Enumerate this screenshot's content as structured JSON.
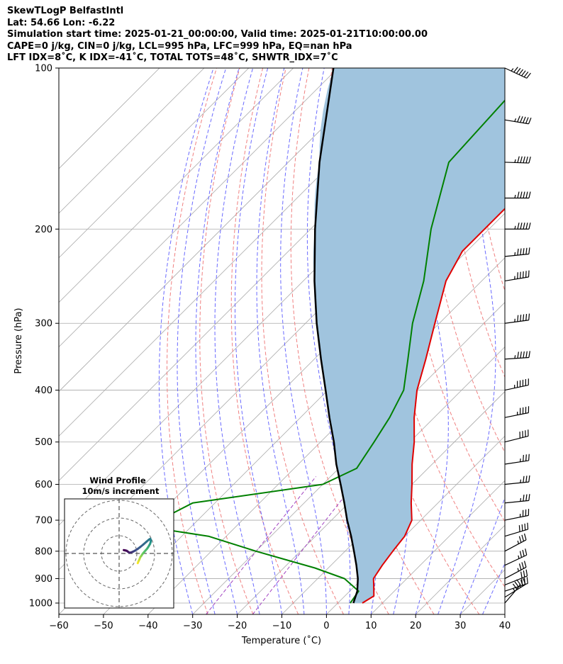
{
  "header": {
    "line1": "SkewTLogP BelfastIntl",
    "line2": "Lat: 54.66   Lon: -6.22",
    "line3": "Simulation start time: 2025-01-21_00:00:00, Valid time: 2025-01-21T10:00:00.00",
    "line4": "CAPE=0 j/kg, CIN=0 j/kg, LCL=995 hPa, LFC=999 hPa, EQ=nan hPa",
    "line5": "LFT IDX=8˚C, K IDX=-41˚C, TOTAL TOTS=48˚C, SHWTR_IDX=7˚C"
  },
  "chart_data": {
    "type": "line",
    "skew_t_log_p": true,
    "xlabel": "Temperature (˚C)",
    "ylabel": "Pressure (hPa)",
    "xlim": [
      -60,
      40
    ],
    "ylim": [
      1050,
      100
    ],
    "y_scale": "log",
    "grid": true,
    "x_ticks": [
      -60,
      -50,
      -40,
      -30,
      -20,
      -10,
      0,
      10,
      20,
      30,
      40
    ],
    "y_ticks": [
      100,
      200,
      300,
      400,
      500,
      600,
      700,
      800,
      900,
      1000
    ],
    "colors": {
      "temperature": "#e00000",
      "dewpoint": "#008000",
      "parcel": "#000000",
      "shading": "#a0c4de",
      "dry_adiabats": "#f08080",
      "moist_adiabats": "#6a6aff",
      "mixing_ratio": "#a040c0",
      "isotherms": "#aaaaaa"
    },
    "series": [
      {
        "key": "temperature",
        "pressure": [
          1000,
          970,
          925,
          900,
          850,
          800,
          750,
          700,
          650,
          600,
          550,
          500,
          450,
          400,
          350,
          300,
          250,
          220,
          200,
          150,
          120,
          100
        ],
        "temperature": [
          5.5,
          6.5,
          4.0,
          2.5,
          1.5,
          0.7,
          0.0,
          -2.0,
          -6.0,
          -10.0,
          -14.5,
          -19.0,
          -24.5,
          -30.0,
          -35.0,
          -41.0,
          -48.0,
          -51.0,
          -51.0,
          -51.0,
          -53.0,
          -55.0
        ]
      },
      {
        "key": "dewpoint",
        "pressure": [
          1000,
          950,
          900,
          860,
          800,
          750,
          720,
          650,
          600,
          560,
          500,
          450,
          400,
          350,
          300,
          250,
          200,
          150,
          100
        ],
        "temperature": [
          2.8,
          2.0,
          -4.0,
          -13.0,
          -30.0,
          -44.0,
          -60.0,
          -55.0,
          -30.0,
          -26.0,
          -28.0,
          -30.0,
          -33.0,
          -39.0,
          -46.0,
          -53.0,
          -63.0,
          -74.0,
          -76.0
        ]
      },
      {
        "key": "parcel",
        "pressure": [
          1000,
          950,
          900,
          850,
          800,
          750,
          700,
          650,
          600,
          550,
          500,
          450,
          400,
          350,
          300,
          250,
          200,
          150,
          100
        ],
        "temperature": [
          3.5,
          1.7,
          -1.0,
          -4.3,
          -8.0,
          -12.0,
          -16.5,
          -21.0,
          -26.0,
          -31.5,
          -37.0,
          -43.5,
          -50.5,
          -58.5,
          -67.5,
          -77.5,
          -89.0,
          -103.0,
          -121.0
        ]
      }
    ],
    "wind_barbs": [
      {
        "p": 100,
        "u": -30,
        "v": 14
      },
      {
        "p": 125,
        "u": -30,
        "v": 5
      },
      {
        "p": 150,
        "u": -30,
        "v": 1
      },
      {
        "p": 175,
        "u": -30,
        "v": 0
      },
      {
        "p": 200,
        "u": -30,
        "v": 0
      },
      {
        "p": 225,
        "u": -30,
        "v": -3
      },
      {
        "p": 250,
        "u": -30,
        "v": -5
      },
      {
        "p": 300,
        "u": -30,
        "v": -4
      },
      {
        "p": 350,
        "u": -30,
        "v": -2
      },
      {
        "p": 400,
        "u": -28,
        "v": -6
      },
      {
        "p": 450,
        "u": -25,
        "v": -5
      },
      {
        "p": 500,
        "u": -20,
        "v": -5
      },
      {
        "p": 550,
        "u": -20,
        "v": -3
      },
      {
        "p": 600,
        "u": -20,
        "v": -2
      },
      {
        "p": 650,
        "u": -20,
        "v": -2
      },
      {
        "p": 700,
        "u": -20,
        "v": -4
      },
      {
        "p": 750,
        "u": -20,
        "v": -6
      },
      {
        "p": 800,
        "u": -15,
        "v": -8
      },
      {
        "p": 850,
        "u": -17,
        "v": -8
      },
      {
        "p": 900,
        "u": -15,
        "v": -8
      },
      {
        "p": 925,
        "u": -15,
        "v": -6
      },
      {
        "p": 950,
        "u": -15,
        "v": -5
      },
      {
        "p": 975,
        "u": -13,
        "v": -8
      },
      {
        "p": 1000,
        "u": -12,
        "v": -14
      }
    ],
    "hodograph": {
      "title": "Wind Profile",
      "subtitle": "10m/s increment",
      "ring_step": 10,
      "rings": [
        10,
        20,
        30
      ],
      "u": [
        10.5,
        10.8,
        11.2,
        11.6,
        12.0,
        12.5,
        13.0,
        13.6,
        14.3,
        15.0,
        15.8,
        16.4,
        17.0,
        17.5,
        17.8,
        17.9,
        17.6,
        16.8,
        15.4,
        13.7,
        12.0,
        10.4,
        9.0,
        7.8,
        6.8,
        5.9,
        5.1,
        4.3,
        3.5,
        2.6
      ],
      "v": [
        -5.5,
        -4.7,
        -3.9,
        -3.0,
        -2.0,
        -1.4,
        -0.6,
        0.2,
        1.0,
        1.8,
        2.7,
        3.6,
        4.6,
        5.5,
        6.5,
        7.6,
        8.3,
        7.8,
        6.6,
        5.1,
        3.7,
        2.5,
        1.6,
        1.0,
        0.6,
        0.4,
        0.9,
        1.5,
        1.7,
        1.9
      ]
    }
  }
}
